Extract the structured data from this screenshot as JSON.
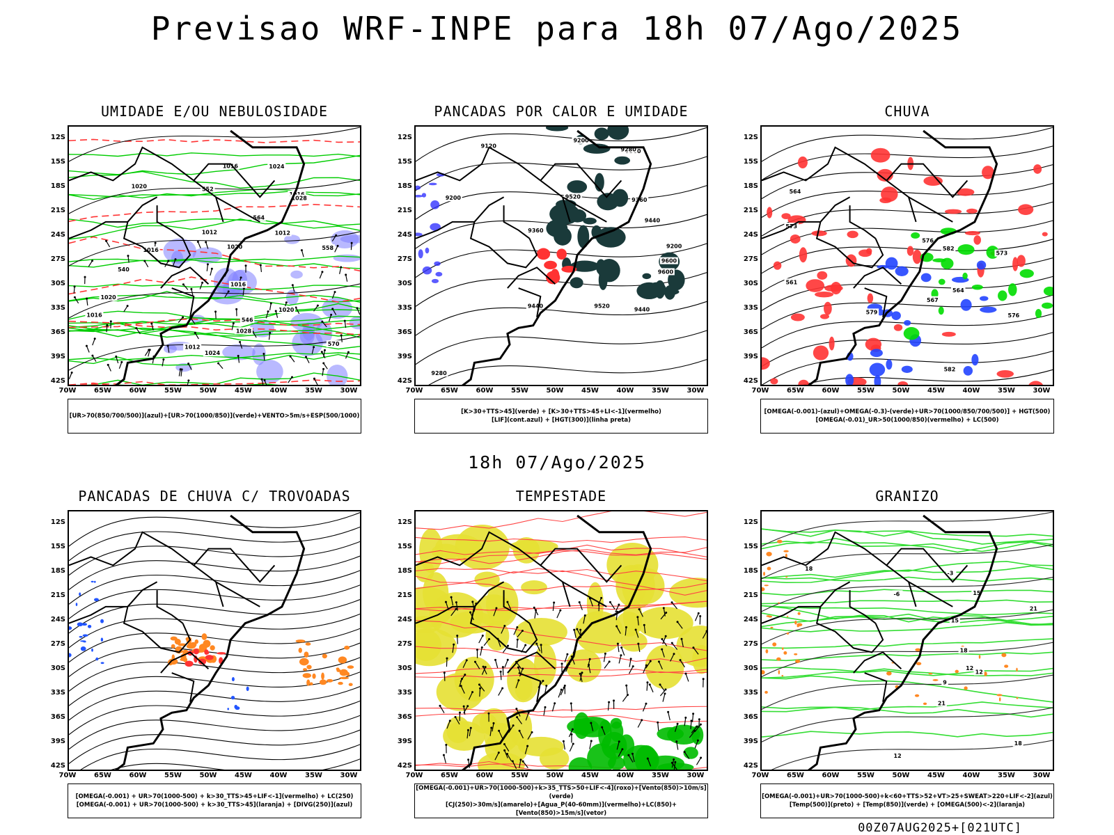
{
  "title": "Previsao WRF-INPE  para 18h 07/Ago/2025",
  "subtitle": "18h 07/Ago/2025",
  "footer": "00Z07AUG2025+[021UTC]",
  "axes": {
    "lat_labels": [
      "12S",
      "15S",
      "18S",
      "21S",
      "24S",
      "27S",
      "30S",
      "33S",
      "36S",
      "39S",
      "42S"
    ],
    "lon_labels": [
      "70W",
      "65W",
      "60W",
      "55W",
      "50W",
      "45W",
      "40W",
      "35W",
      "30W"
    ]
  },
  "panels": [
    {
      "id": "umidade",
      "title": "UMIDADE E/OU NEBULOSIDADE",
      "legend": [
        "[UR>70(850/700/500)](azul)+[UR>70(1000/850)](verde)+VENTO>5m/s+ESP(500/1000)"
      ],
      "contour_labels": [
        "1012",
        "1016",
        "1012",
        "1012",
        "1016",
        "1020",
        "1016",
        "1016",
        "1020",
        "1016",
        "1020",
        "1024",
        "1028",
        "1020",
        "1024",
        "1028",
        "570",
        "564",
        "558",
        "552",
        "546",
        "540"
      ],
      "colors": {
        "primary": "#00cc00",
        "secondary": "#ff3333",
        "shade": "#8080ff"
      }
    },
    {
      "id": "pancadas-calor",
      "title": "PANCADAS POR CALOR E UMIDADE",
      "legend": [
        "[K>30+TTS>45](verde) + [K>30+TTS>45+LI<-1](vermelho)",
        "[LIF](cont.azul) + [HGT(300)](linha preta)"
      ],
      "contour_labels": [
        "9600",
        "9600",
        "9520",
        "9520",
        "9440",
        "9440",
        "9440",
        "9360",
        "9360",
        "9360",
        "9280",
        "9280",
        "9200",
        "9200",
        "9120",
        "9200"
      ],
      "colors": {
        "primary": "#1a3a3a",
        "secondary": "#ff3333",
        "shade": "#3333ff"
      }
    },
    {
      "id": "chuva",
      "title": "CHUVA",
      "legend": [
        "[OMEGA(-0.001)-(azul)+OMEGA(-0.3)-(verde)+UR>70(1000/850/700/500)] + HGT(500)",
        "[OMEGA(-0.01)_UR>50(1000/850)(vermelho) + LC(500)"
      ],
      "contour_labels": [
        "582",
        "582",
        "576",
        "579",
        "576",
        "573",
        "573",
        "567",
        "564",
        "564",
        "561"
      ],
      "colors": {
        "primary": "#00dd00",
        "secondary": "#ff3333",
        "shade": "#2244ff"
      }
    },
    {
      "id": "pancadas-trovoadas",
      "title": "PANCADAS DE CHUVA C/ TROVOADAS",
      "legend": [
        "[OMEGA(-0.001) + UR>70(1000-500) + k>30_TTS>45+LIF<-1](vermelho) + LC(250)",
        "[OMEGA(-0.001) + UR>70(1000-500) + k>30_TTS>45](laranja) + [DIVG(250)](azul)"
      ],
      "contour_labels": [],
      "colors": {
        "primary": "#ff8822",
        "secondary": "#ff3333",
        "shade": "#2255ff"
      }
    },
    {
      "id": "tempestade",
      "title": "TEMPESTADE",
      "legend": [
        "[OMEGA(-0.001)+UR>70(1000-500)+k>35_TTS>50+LIF<-4](roxo)+[Vento(850)>10m/s](verde)",
        "[CJ(250)>30m/s](amarelo)+[Agua_P(40-60mm)](vermelho)+LC(850)+[Vento(850)>15m/s](vetor)"
      ],
      "contour_labels": [],
      "colors": {
        "primary": "#e6e033",
        "secondary": "#ff4444",
        "shade": "#00bb00"
      }
    },
    {
      "id": "granizo",
      "title": "GRANIZO",
      "legend": [
        "[OMEGA(-0.001)+UR>70(1000-500)+k<60+TTS>52+VT>25+SWEAT>220+LIF<-2](azul)",
        "[Temp(500)](preto) + [Temp(850)](verde) + [OMEGA(500)<-2](laranja)"
      ],
      "contour_labels": [
        "-6",
        "-3",
        "9",
        "12",
        "12",
        "15",
        "18",
        "21",
        "18",
        "15",
        "21",
        "18",
        "12"
      ],
      "colors": {
        "primary": "#33dd33",
        "secondary": "#ff8822",
        "shade": "#222222"
      }
    }
  ]
}
